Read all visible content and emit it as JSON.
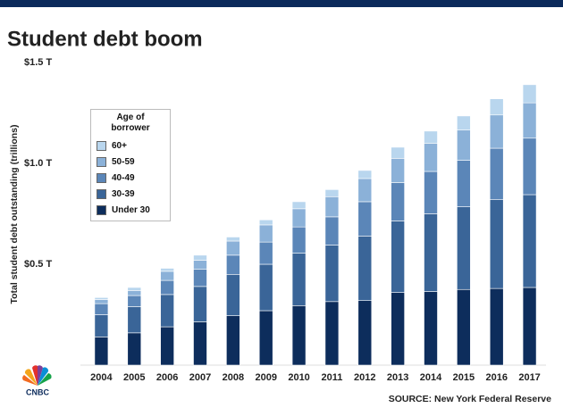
{
  "title": "Student debt boom",
  "source": "SOURCE: New York Federal Reserve",
  "chart_data": {
    "type": "stacked_bar",
    "y_label": "Total student debt outstanding (trillions)",
    "legend_title": "Age of borrower",
    "categories": [
      "2004",
      "2005",
      "2006",
      "2007",
      "2008",
      "2009",
      "2010",
      "2011",
      "2012",
      "2013",
      "2014",
      "2015",
      "2016",
      "2017"
    ],
    "series": [
      {
        "name": "Under 30",
        "color": "#0d2d5c",
        "values": [
          0.14,
          0.16,
          0.19,
          0.215,
          0.245,
          0.27,
          0.295,
          0.315,
          0.32,
          0.36,
          0.365,
          0.375,
          0.38,
          0.385
        ]
      },
      {
        "name": "30-39",
        "color": "#3a6598",
        "values": [
          0.11,
          0.13,
          0.16,
          0.175,
          0.205,
          0.23,
          0.26,
          0.28,
          0.32,
          0.355,
          0.385,
          0.41,
          0.44,
          0.46
        ]
      },
      {
        "name": "40-49",
        "color": "#5b86b8",
        "values": [
          0.055,
          0.055,
          0.07,
          0.085,
          0.095,
          0.11,
          0.13,
          0.14,
          0.17,
          0.19,
          0.21,
          0.23,
          0.255,
          0.28
        ]
      },
      {
        "name": "50-59",
        "color": "#8bb1d8",
        "values": [
          0.02,
          0.025,
          0.045,
          0.045,
          0.07,
          0.085,
          0.09,
          0.1,
          0.115,
          0.12,
          0.14,
          0.15,
          0.165,
          0.175
        ]
      },
      {
        "name": "60+",
        "color": "#b9d6ee",
        "values": [
          0.01,
          0.015,
          0.015,
          0.025,
          0.02,
          0.025,
          0.035,
          0.035,
          0.04,
          0.055,
          0.06,
          0.07,
          0.08,
          0.09
        ]
      }
    ],
    "ylim": [
      0,
      1.5
    ],
    "yticks": [
      {
        "value": 0.5,
        "label": "$0.5 T"
      },
      {
        "value": 1.0,
        "label": "$1.0 T"
      },
      {
        "value": 1.5,
        "label": "$1.5 T"
      }
    ]
  }
}
